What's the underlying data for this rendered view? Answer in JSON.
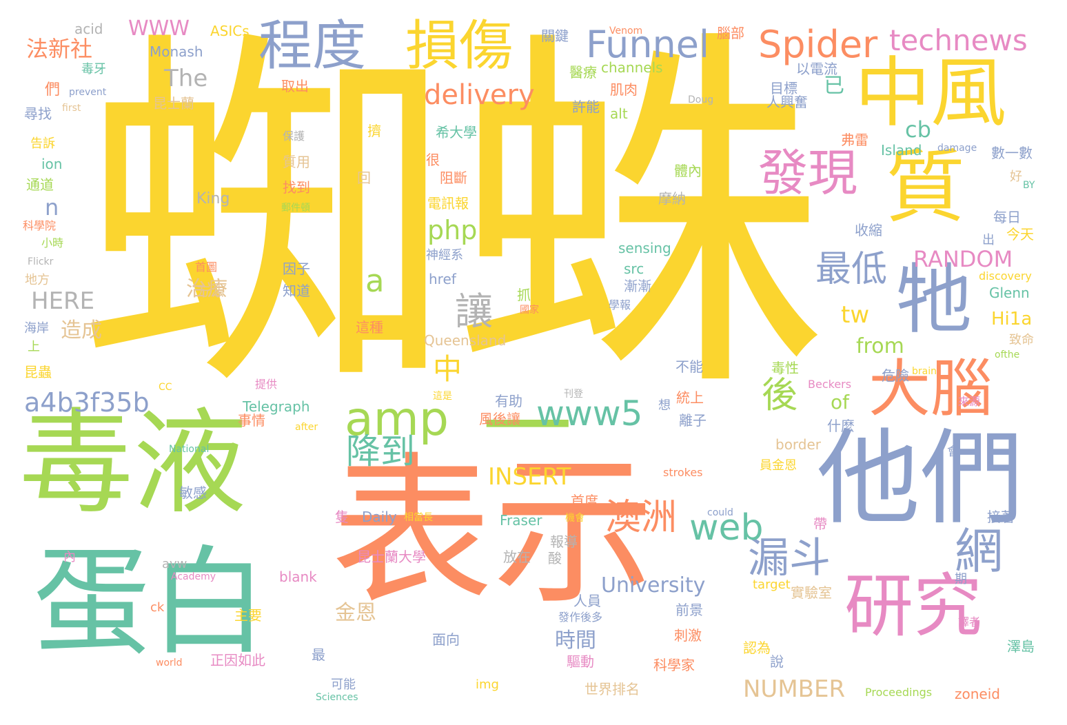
{
  "words": [
    {
      "text": "蜘蛛",
      "cls": "c1"
    },
    {
      "text": "毒液",
      "cls": "c2"
    },
    {
      "text": "表示",
      "cls": "c4"
    },
    {
      "text": "蛋白",
      "cls": "c3"
    },
    {
      "text": "他們",
      "cls": "c5"
    },
    {
      "text": "一",
      "cls": "c2"
    },
    {
      "text": "中風",
      "cls": "c1"
    },
    {
      "text": "損傷",
      "cls": "c1"
    },
    {
      "text": "程度",
      "cls": "c5"
    },
    {
      "text": "牠",
      "cls": "c5"
    },
    {
      "text": "質",
      "cls": "c1"
    },
    {
      "text": "大腦",
      "cls": "c4"
    },
    {
      "text": "研究",
      "cls": "c6"
    },
    {
      "text": "發現",
      "cls": "c6"
    },
    {
      "text": "amp",
      "cls": "c2"
    },
    {
      "text": "Spider",
      "cls": "c4"
    },
    {
      "text": "Funnel",
      "cls": "c5"
    },
    {
      "text": "technews",
      "cls": "c6"
    },
    {
      "text": "漏斗",
      "cls": "c5"
    },
    {
      "text": "網",
      "cls": "c5"
    },
    {
      "text": "web",
      "cls": "c3"
    },
    {
      "text": "澳洲",
      "cls": "c4"
    },
    {
      "text": "www5",
      "cls": "c3"
    },
    {
      "text": "delivery",
      "cls": "c4"
    },
    {
      "text": "最低",
      "cls": "c5"
    },
    {
      "text": "後",
      "cls": "c2"
    },
    {
      "text": "降到",
      "cls": "c3"
    },
    {
      "text": "a4b3f35b",
      "cls": "c5"
    },
    {
      "text": "讓",
      "cls": "c8"
    },
    {
      "text": "中",
      "cls": "c1"
    },
    {
      "text": "a",
      "cls": "c2"
    },
    {
      "text": "php",
      "cls": "c2"
    },
    {
      "text": "n",
      "cls": "c5"
    },
    {
      "text": "WWW",
      "cls": "c6"
    },
    {
      "text": "法新社",
      "cls": "c4"
    },
    {
      "text": "The",
      "cls": "c8"
    },
    {
      "text": "HERE",
      "cls": "c8"
    },
    {
      "text": "RANDOM",
      "cls": "c6"
    },
    {
      "text": "INSERT",
      "cls": "c1"
    },
    {
      "text": "NUMBER",
      "cls": "c7"
    },
    {
      "text": "University",
      "cls": "c5"
    },
    {
      "text": "cb",
      "cls": "c3"
    },
    {
      "text": "tw",
      "cls": "c1"
    },
    {
      "text": "from",
      "cls": "c2"
    },
    {
      "text": "Hi1a",
      "cls": "c1"
    },
    {
      "text": "of",
      "cls": "c2"
    },
    {
      "text": "已",
      "cls": "c3"
    },
    {
      "text": "時間",
      "cls": "c5"
    },
    {
      "text": "金恩",
      "cls": "c7"
    },
    {
      "text": "治療",
      "cls": "c7"
    },
    {
      "text": "造成",
      "cls": "c7"
    },
    {
      "text": "Monash",
      "cls": "c5"
    },
    {
      "text": "ASICs",
      "cls": "c1"
    },
    {
      "text": "acid",
      "cls": "c8"
    },
    {
      "text": "毒牙",
      "cls": "c3"
    },
    {
      "text": "們",
      "cls": "c4"
    },
    {
      "text": "prevent",
      "cls": "c5"
    },
    {
      "text": "first",
      "cls": "c7"
    },
    {
      "text": "尋找",
      "cls": "c5"
    },
    {
      "text": "告訴",
      "cls": "c1"
    },
    {
      "text": "ion",
      "cls": "c3"
    },
    {
      "text": "通道",
      "cls": "c2"
    },
    {
      "text": "科學院",
      "cls": "c4"
    },
    {
      "text": "小時",
      "cls": "c2"
    },
    {
      "text": "Flickr",
      "cls": "c8"
    },
    {
      "text": "地方",
      "cls": "c7"
    },
    {
      "text": "海岸",
      "cls": "c5"
    },
    {
      "text": "上",
      "cls": "c2"
    },
    {
      "text": "昆蟲",
      "cls": "c1"
    },
    {
      "text": "CC",
      "cls": "c1"
    },
    {
      "text": "Telegraph",
      "cls": "c3"
    },
    {
      "text": "事情",
      "cls": "c4"
    },
    {
      "text": "after",
      "cls": "c1"
    },
    {
      "text": "National",
      "cls": "c3"
    },
    {
      "text": "敏感",
      "cls": "c5"
    },
    {
      "text": "avw",
      "cls": "c8"
    },
    {
      "text": "Academy",
      "cls": "c6"
    },
    {
      "text": "內",
      "cls": "c6"
    },
    {
      "text": "ck",
      "cls": "c4"
    },
    {
      "text": "world",
      "cls": "c4"
    },
    {
      "text": "主要",
      "cls": "c1"
    },
    {
      "text": "正因如此",
      "cls": "c6"
    },
    {
      "text": "blank",
      "cls": "c6"
    },
    {
      "text": "Sciences",
      "cls": "c3"
    },
    {
      "text": "可能",
      "cls": "c5"
    },
    {
      "text": "最",
      "cls": "c5"
    },
    {
      "text": "面向",
      "cls": "c5"
    },
    {
      "text": "img",
      "cls": "c1"
    },
    {
      "text": "Daily",
      "cls": "c5"
    },
    {
      "text": "相當長",
      "cls": "c1"
    },
    {
      "text": "Fraser",
      "cls": "c3"
    },
    {
      "text": "昆士蘭大學",
      "cls": "c6"
    },
    {
      "text": "隻",
      "cls": "c6"
    },
    {
      "text": "放在",
      "cls": "c8"
    },
    {
      "text": "報導",
      "cls": "c8"
    },
    {
      "text": "酸",
      "cls": "c8"
    },
    {
      "text": "首度",
      "cls": "c4"
    },
    {
      "text": "機會",
      "cls": "c1"
    },
    {
      "text": "人員",
      "cls": "c5"
    },
    {
      "text": "發作後多",
      "cls": "c5"
    },
    {
      "text": "驅動",
      "cls": "c6"
    },
    {
      "text": "世界排名",
      "cls": "c7"
    },
    {
      "text": "科學家",
      "cls": "c4"
    },
    {
      "text": "前景",
      "cls": "c5"
    },
    {
      "text": "刺激",
      "cls": "c4"
    },
    {
      "text": "could",
      "cls": "c5"
    },
    {
      "text": "target",
      "cls": "c1"
    },
    {
      "text": "實驗室",
      "cls": "c7"
    },
    {
      "text": "認為",
      "cls": "c1"
    },
    {
      "text": "說",
      "cls": "c5"
    },
    {
      "text": "Proceedings",
      "cls": "c2"
    },
    {
      "text": "zoneid",
      "cls": "c4"
    },
    {
      "text": "澤島",
      "cls": "c3"
    },
    {
      "text": "譯者",
      "cls": "c6"
    },
    {
      "text": "期",
      "cls": "c5"
    },
    {
      "text": "接著",
      "cls": "c5"
    },
    {
      "text": "帶",
      "cls": "c6"
    },
    {
      "text": "員金恩",
      "cls": "c1"
    },
    {
      "text": "strokes",
      "cls": "c4"
    },
    {
      "text": "會",
      "cls": "c5"
    },
    {
      "text": "border",
      "cls": "c7"
    },
    {
      "text": "什麼",
      "cls": "c5"
    },
    {
      "text": "離子",
      "cls": "c5"
    },
    {
      "text": "統上",
      "cls": "c4"
    },
    {
      "text": "不能",
      "cls": "c5"
    },
    {
      "text": "想",
      "cls": "c5"
    },
    {
      "text": "Beckers",
      "cls": "c6"
    },
    {
      "text": "brain",
      "cls": "c1"
    },
    {
      "text": "危險",
      "cls": "c5"
    },
    {
      "text": "ofthe",
      "cls": "c2"
    },
    {
      "text": "致命",
      "cls": "c7"
    },
    {
      "text": "來源",
      "cls": "c6"
    },
    {
      "text": "毒性",
      "cls": "c2"
    },
    {
      "text": "Glenn",
      "cls": "c3"
    },
    {
      "text": "discovery",
      "cls": "c1"
    },
    {
      "text": "今天",
      "cls": "c1"
    },
    {
      "text": "出",
      "cls": "c5"
    },
    {
      "text": "收縮",
      "cls": "c5"
    },
    {
      "text": "每日",
      "cls": "c5"
    },
    {
      "text": "BY",
      "cls": "c3"
    },
    {
      "text": "好",
      "cls": "c7"
    },
    {
      "text": "數一數",
      "cls": "c5"
    },
    {
      "text": "damage",
      "cls": "c5"
    },
    {
      "text": "弗雷",
      "cls": "c4"
    },
    {
      "text": "Island",
      "cls": "c3"
    },
    {
      "text": "人興奮",
      "cls": "c5"
    },
    {
      "text": "目標",
      "cls": "c5"
    },
    {
      "text": "以電流",
      "cls": "c5"
    },
    {
      "text": "腦部",
      "cls": "c4"
    },
    {
      "text": "Venom",
      "cls": "c4"
    },
    {
      "text": "關鍵",
      "cls": "c5"
    },
    {
      "text": "channels",
      "cls": "c2"
    },
    {
      "text": "醫療",
      "cls": "c2"
    },
    {
      "text": "取出",
      "cls": "c4"
    },
    {
      "text": "昆士蘭",
      "cls": "c7"
    },
    {
      "text": "許能",
      "cls": "c5"
    },
    {
      "text": "alt",
      "cls": "c2"
    },
    {
      "text": "肌肉",
      "cls": "c4"
    },
    {
      "text": "Doug",
      "cls": "c8"
    },
    {
      "text": "擠",
      "cls": "c1"
    },
    {
      "text": "希大學",
      "cls": "c3"
    },
    {
      "text": "保護",
      "cls": "c8"
    },
    {
      "text": "質用",
      "cls": "c7"
    },
    {
      "text": "很",
      "cls": "c4"
    },
    {
      "text": "阻斷",
      "cls": "c4"
    },
    {
      "text": "回",
      "cls": "c7"
    },
    {
      "text": "找到",
      "cls": "c4"
    },
    {
      "text": "郵件頓",
      "cls": "c2"
    },
    {
      "text": "電訊報",
      "cls": "c1"
    },
    {
      "text": "King",
      "cls": "c8"
    },
    {
      "text": "神經系",
      "cls": "c5"
    },
    {
      "text": "sensing",
      "cls": "c3"
    },
    {
      "text": "src",
      "cls": "c3"
    },
    {
      "text": "漸漸",
      "cls": "c5"
    },
    {
      "text": "因子",
      "cls": "c5"
    },
    {
      "text": "知道",
      "cls": "c5"
    },
    {
      "text": "href",
      "cls": "c5"
    },
    {
      "text": "抓",
      "cls": "c2"
    },
    {
      "text": "國家",
      "cls": "c4"
    },
    {
      "text": "學報",
      "cls": "c5"
    },
    {
      "text": "首圖",
      "cls": "c4"
    },
    {
      "text": "方法",
      "cls": "c7"
    },
    {
      "text": "這種",
      "cls": "c4"
    },
    {
      "text": "Queensland",
      "cls": "c7"
    },
    {
      "text": "提供",
      "cls": "c6"
    },
    {
      "text": "這是",
      "cls": "c1"
    },
    {
      "text": "刊登",
      "cls": "c8"
    },
    {
      "text": "有助",
      "cls": "c5"
    },
    {
      "text": "風後讓",
      "cls": "c4"
    },
    {
      "text": "體內",
      "cls": "c2"
    },
    {
      "text": "摩納",
      "cls": "c8"
    }
  ]
}
